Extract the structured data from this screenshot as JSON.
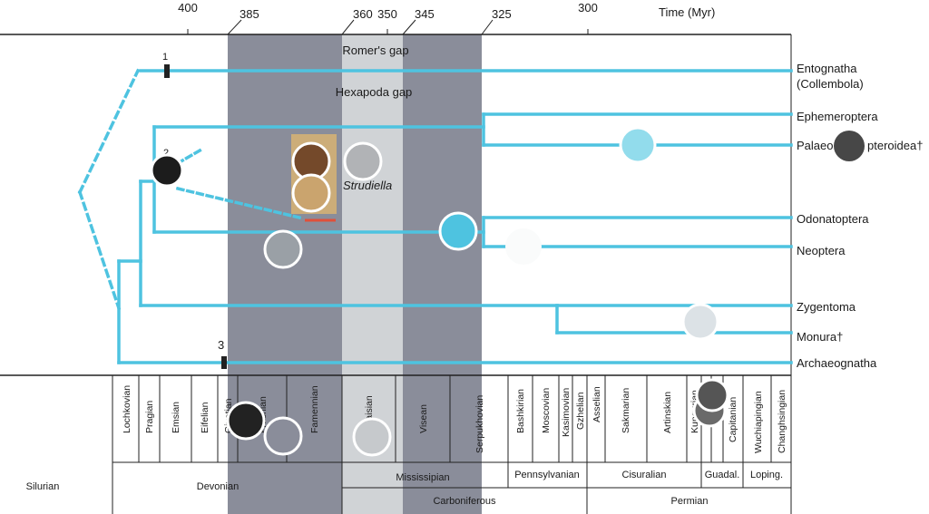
{
  "axis": {
    "title": "Time (Myr)",
    "ticks": [
      "400",
      "385",
      "360",
      "350",
      "345",
      "325",
      "300"
    ]
  },
  "gaps": {
    "romer": "Romer's gap",
    "hexapoda": "Hexapoda gap"
  },
  "taxa": [
    "Entognatha",
    "(Collembola)",
    "Ephemeroptera",
    "Palaeo",
    "pteroidea†",
    "Odonatoptera",
    "Neoptera",
    "Zygentoma",
    "Monura†",
    "Archaeognatha"
  ],
  "fossil": {
    "name": "Strudiella"
  },
  "nodes": [
    "1",
    "2",
    "3"
  ],
  "stages": [
    "Lochkovian",
    "Pragian",
    "Emsian",
    "Eifelian",
    "Givetian",
    "Frasnian",
    "Famennian",
    "Tournaisian",
    "Visean",
    "Serpukhovian",
    "Bashkirian",
    "Moscovian",
    "Kasimovian",
    "Gzhelian",
    "Asselian",
    "Sakmarian",
    "Artinskian",
    "Kungurian",
    "Capitanian",
    "Wuchiapingian",
    "Changhsingian"
  ],
  "epochs": [
    "Silurian",
    "Devonian",
    "Mississipian",
    "Pennsylvanian",
    "Cisuralian",
    "Guadal.",
    "Loping."
  ],
  "periods": [
    "Carboniferous",
    "Permian"
  ],
  "colors": {
    "branch": "#4ec3e0",
    "gap_dark": "#8a8d9a",
    "gap_light": "#d0d3d6",
    "scale_bar": "#e0503a"
  }
}
